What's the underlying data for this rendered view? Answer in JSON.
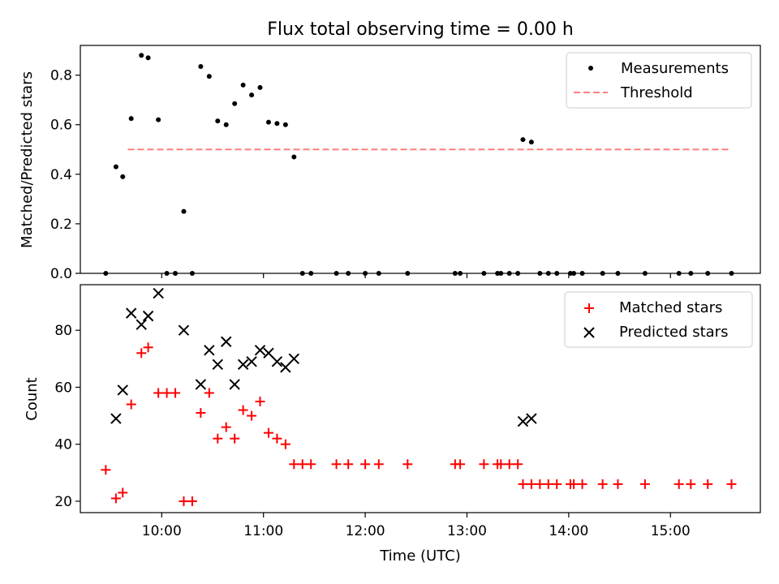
{
  "chart_data": [
    {
      "type": "scatter",
      "title": "Flux total observing time = 0.00 h",
      "xlabel": "",
      "ylabel": "Matched/Predicted stars",
      "ylim": [
        0,
        0.92
      ],
      "yticks": [
        0.0,
        0.2,
        0.4,
        0.6,
        0.8
      ],
      "ytick_labels": [
        "0.0",
        "0.2",
        "0.4",
        "0.6",
        "0.8"
      ],
      "legend": {
        "placement": "top-right",
        "entries": [
          "Measurements",
          "Threshold"
        ]
      },
      "threshold": {
        "name": "Threshold",
        "y": 0.5,
        "x_start": "09:40",
        "x_end": "15:35",
        "color": "#ff7f7f"
      },
      "series": [
        {
          "name": "Measurements",
          "color": "#000000",
          "marker": "dot",
          "points": [
            [
              "09:27",
              0.0
            ],
            [
              "09:33",
              0.43
            ],
            [
              "09:37",
              0.39
            ],
            [
              "09:42",
              0.625
            ],
            [
              "09:48",
              0.88
            ],
            [
              "09:52",
              0.87
            ],
            [
              "09:58",
              0.62
            ],
            [
              "10:03",
              0.0
            ],
            [
              "10:08",
              0.0
            ],
            [
              "10:13",
              0.25
            ],
            [
              "10:18",
              0.0
            ],
            [
              "10:23",
              0.835
            ],
            [
              "10:28",
              0.795
            ],
            [
              "10:33",
              0.615
            ],
            [
              "10:38",
              0.6
            ],
            [
              "10:43",
              0.685
            ],
            [
              "10:48",
              0.76
            ],
            [
              "10:53",
              0.72
            ],
            [
              "10:58",
              0.75
            ],
            [
              "11:03",
              0.61
            ],
            [
              "11:08",
              0.605
            ],
            [
              "11:13",
              0.6
            ],
            [
              "11:18",
              0.47
            ],
            [
              "11:23",
              0.0
            ],
            [
              "11:28",
              0.0
            ],
            [
              "11:43",
              0.0
            ],
            [
              "11:50",
              0.0
            ],
            [
              "12:00",
              0.0
            ],
            [
              "12:08",
              0.0
            ],
            [
              "12:25",
              0.0
            ],
            [
              "12:53",
              0.0
            ],
            [
              "12:56",
              0.0
            ],
            [
              "13:10",
              0.0
            ],
            [
              "13:18",
              0.0
            ],
            [
              "13:20",
              0.0
            ],
            [
              "13:25",
              0.0
            ],
            [
              "13:30",
              0.0
            ],
            [
              "13:33",
              0.54
            ],
            [
              "13:38",
              0.53
            ],
            [
              "13:43",
              0.0
            ],
            [
              "13:48",
              0.0
            ],
            [
              "13:53",
              0.0
            ],
            [
              "14:01",
              0.0
            ],
            [
              "14:03",
              0.0
            ],
            [
              "14:08",
              0.0
            ],
            [
              "14:20",
              0.0
            ],
            [
              "14:29",
              0.0
            ],
            [
              "14:45",
              0.0
            ],
            [
              "15:05",
              0.0
            ],
            [
              "15:12",
              0.0
            ],
            [
              "15:22",
              0.0
            ],
            [
              "15:36",
              0.0
            ]
          ]
        }
      ]
    },
    {
      "type": "scatter",
      "title": "",
      "xlabel": "Time (UTC)",
      "ylabel": "Count",
      "ylim": [
        16,
        96
      ],
      "yticks": [
        20,
        40,
        60,
        80
      ],
      "ytick_labels": [
        "20",
        "40",
        "60",
        "80"
      ],
      "xlim": [
        "09:12",
        "15:53"
      ],
      "xticks": [
        "10:00",
        "11:00",
        "12:00",
        "13:00",
        "14:00",
        "15:00"
      ],
      "xtick_labels": [
        "10:00",
        "11:00",
        "12:00",
        "13:00",
        "14:00",
        "15:00"
      ],
      "legend": {
        "placement": "top-right",
        "entries": [
          "Matched stars",
          "Predicted stars"
        ]
      },
      "series": [
        {
          "name": "Matched stars",
          "color": "#ff0000",
          "marker": "plus",
          "points": [
            [
              "09:27",
              31
            ],
            [
              "09:33",
              21
            ],
            [
              "09:37",
              23
            ],
            [
              "09:42",
              54
            ],
            [
              "09:48",
              72
            ],
            [
              "09:52",
              74
            ],
            [
              "09:58",
              58
            ],
            [
              "10:03",
              58
            ],
            [
              "10:08",
              58
            ],
            [
              "10:13",
              20
            ],
            [
              "10:18",
              20
            ],
            [
              "10:23",
              51
            ],
            [
              "10:28",
              58
            ],
            [
              "10:33",
              42
            ],
            [
              "10:38",
              46
            ],
            [
              "10:43",
              42
            ],
            [
              "10:48",
              52
            ],
            [
              "10:53",
              50
            ],
            [
              "10:58",
              55
            ],
            [
              "11:03",
              44
            ],
            [
              "11:08",
              42
            ],
            [
              "11:13",
              40
            ],
            [
              "11:18",
              33
            ],
            [
              "11:23",
              33
            ],
            [
              "11:28",
              33
            ],
            [
              "11:43",
              33
            ],
            [
              "11:50",
              33
            ],
            [
              "12:00",
              33
            ],
            [
              "12:08",
              33
            ],
            [
              "12:25",
              33
            ],
            [
              "12:53",
              33
            ],
            [
              "12:56",
              33
            ],
            [
              "13:10",
              33
            ],
            [
              "13:18",
              33
            ],
            [
              "13:20",
              33
            ],
            [
              "13:25",
              33
            ],
            [
              "13:30",
              33
            ],
            [
              "13:33",
              26
            ],
            [
              "13:38",
              26
            ],
            [
              "13:43",
              26
            ],
            [
              "13:48",
              26
            ],
            [
              "13:53",
              26
            ],
            [
              "14:01",
              26
            ],
            [
              "14:03",
              26
            ],
            [
              "14:08",
              26
            ],
            [
              "14:20",
              26
            ],
            [
              "14:29",
              26
            ],
            [
              "14:45",
              26
            ],
            [
              "15:05",
              26
            ],
            [
              "15:12",
              26
            ],
            [
              "15:22",
              26
            ],
            [
              "15:36",
              26
            ]
          ]
        },
        {
          "name": "Predicted stars",
          "color": "#000000",
          "marker": "x",
          "points": [
            [
              "09:33",
              49
            ],
            [
              "09:37",
              59
            ],
            [
              "09:42",
              86
            ],
            [
              "09:48",
              82
            ],
            [
              "09:52",
              85
            ],
            [
              "09:58",
              93
            ],
            [
              "10:13",
              80
            ],
            [
              "10:23",
              61
            ],
            [
              "10:28",
              73
            ],
            [
              "10:33",
              68
            ],
            [
              "10:38",
              76
            ],
            [
              "10:43",
              61
            ],
            [
              "10:48",
              68
            ],
            [
              "10:53",
              69
            ],
            [
              "10:58",
              73
            ],
            [
              "11:03",
              72
            ],
            [
              "11:08",
              69
            ],
            [
              "11:13",
              67
            ],
            [
              "11:18",
              70
            ],
            [
              "13:33",
              48
            ],
            [
              "13:38",
              49
            ]
          ]
        }
      ]
    }
  ]
}
